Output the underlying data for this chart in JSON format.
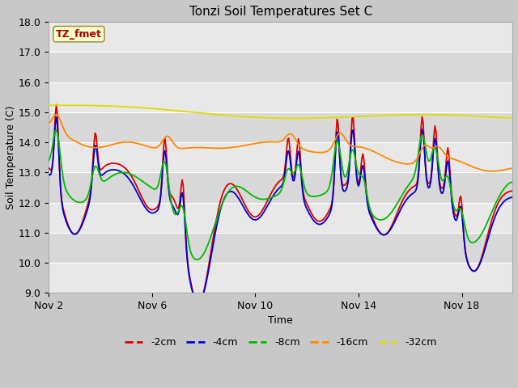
{
  "title": "Tonzi Soil Temperatures Set C",
  "xlabel": "Time",
  "ylabel": "Soil Temperature (C)",
  "ylim": [
    9.0,
    18.0
  ],
  "yticks": [
    9.0,
    10.0,
    11.0,
    12.0,
    13.0,
    14.0,
    15.0,
    16.0,
    17.0,
    18.0
  ],
  "annotation_text": "TZ_fmet",
  "annotation_bg": "#ffffcc",
  "annotation_fg": "#aa0000",
  "annotation_border": "#999944",
  "legend_labels": [
    "-2cm",
    "-4cm",
    "-8cm",
    "-16cm",
    "-32cm"
  ],
  "line_colors": [
    "#dd0000",
    "#0000cc",
    "#00bb00",
    "#ff8800",
    "#dddd00"
  ],
  "xtick_labels": [
    "Nov 2",
    "Nov 6",
    "Nov 10",
    "Nov 14",
    "Nov 18"
  ],
  "xtick_positions": [
    0,
    96,
    192,
    288,
    384
  ],
  "total_points": 432,
  "figsize": [
    6.4,
    4.8
  ],
  "dpi": 100
}
